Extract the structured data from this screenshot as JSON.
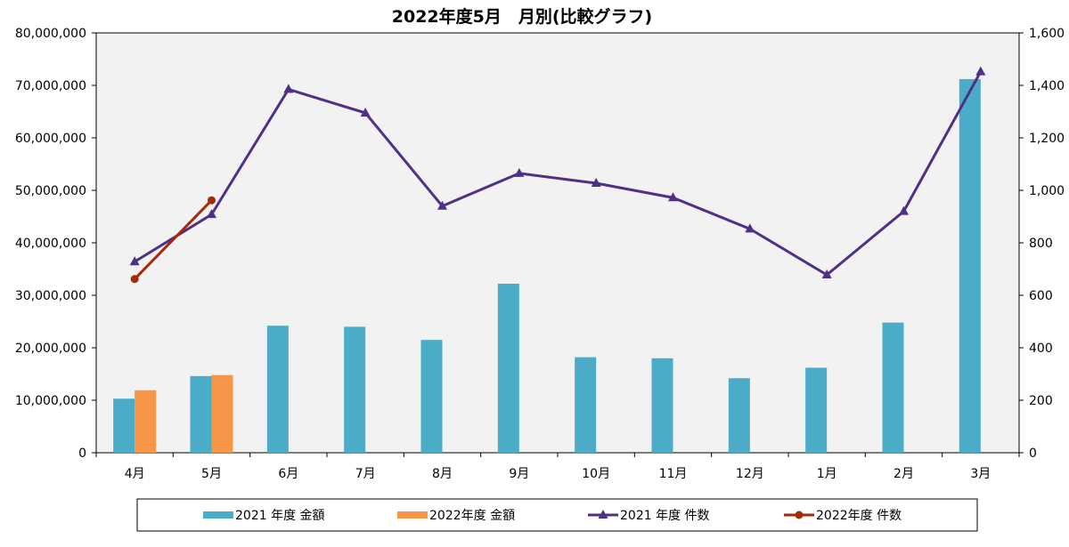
{
  "chart_data": {
    "type": "bar",
    "title": "2022年度5月　月別(比較グラフ)",
    "categories": [
      "4月",
      "5月",
      "6月",
      "7月",
      "8月",
      "9月",
      "10月",
      "11月",
      "12月",
      "1月",
      "2月",
      "3月"
    ],
    "y_left": {
      "ylim": [
        0,
        80000000
      ],
      "ticks": [
        0,
        10000000,
        20000000,
        30000000,
        40000000,
        50000000,
        60000000,
        70000000,
        80000000
      ],
      "tick_labels": [
        "0",
        "10,000,000",
        "20,000,000",
        "30,000,000",
        "40,000,000",
        "50,000,000",
        "60,000,000",
        "70,000,000",
        "80,000,000"
      ]
    },
    "y_right": {
      "ylim": [
        0,
        1600
      ],
      "ticks": [
        0,
        200,
        400,
        600,
        800,
        1000,
        1200,
        1400,
        1600
      ],
      "tick_labels": [
        "0",
        "200",
        "400",
        "600",
        "800",
        "1,000",
        "1,200",
        "1,400",
        "1,600"
      ]
    },
    "series": [
      {
        "name": "2021 年度 金額",
        "type": "bar",
        "axis": "left",
        "color": "#4aacc6",
        "values": [
          10300000,
          14600000,
          24200000,
          24000000,
          21500000,
          32200000,
          18200000,
          18000000,
          14200000,
          16200000,
          24800000,
          71200000
        ]
      },
      {
        "name": "2022年度 金額",
        "type": "bar",
        "axis": "left",
        "color": "#f79646",
        "values": [
          11900000,
          14800000,
          null,
          null,
          null,
          null,
          null,
          null,
          null,
          null,
          null,
          null
        ]
      },
      {
        "name": "2021 年度 件数",
        "type": "line",
        "axis": "right",
        "color": "#4f2f87",
        "marker": "triangle",
        "values": [
          728,
          908,
          1385,
          1295,
          940,
          1065,
          1027,
          972,
          853,
          678,
          920,
          1452
        ]
      },
      {
        "name": "2022年度 件数",
        "type": "line",
        "axis": "right",
        "color": "#a52a0a",
        "marker": "circle",
        "values": [
          662,
          962,
          null,
          null,
          null,
          null,
          null,
          null,
          null,
          null,
          null,
          null
        ]
      }
    ],
    "grid": false,
    "legend_position": "bottom"
  }
}
